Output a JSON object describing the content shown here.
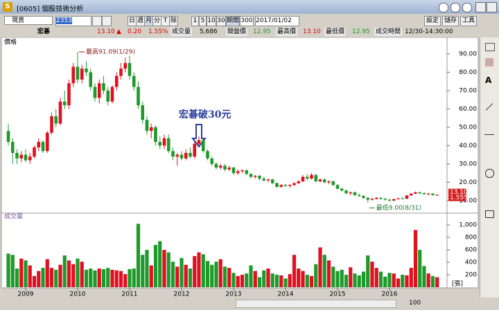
{
  "window": {
    "title": "[0605] 個股技術分析"
  },
  "toolbar": {
    "mode": "現貨",
    "symbol": "2353",
    "periods": [
      "日",
      "週",
      "月",
      "分",
      "T",
      "除"
    ],
    "minutes": [
      "1",
      "5",
      "10",
      "30"
    ],
    "range_label": "期間",
    "range": "300",
    "date": "2017/01/02",
    "buttons": [
      "設定",
      "儲存",
      "工具"
    ]
  },
  "quote": {
    "name": "宏碁",
    "price": "13.10",
    "arrow": "▲",
    "change": "0.20",
    "change_pct": "1.55%",
    "fields": [
      {
        "label": "成交量",
        "value": "5,686"
      },
      {
        "label": "開盤價",
        "value": "12.95"
      },
      {
        "label": "最高價",
        "value": "13.10"
      },
      {
        "label": "最低價",
        "value": "12.95"
      },
      {
        "label": "成交時間",
        "value": "12/30-14:30:00"
      }
    ]
  },
  "chart_data": [
    {
      "type": "candlestick",
      "title": "價格",
      "up_color": "#e01020",
      "down_color": "#1f9a2a",
      "ylim": [
        4.3,
        96
      ],
      "yticks": [
        {
          "value": 10,
          "label": "10.00"
        },
        {
          "value": 20,
          "label": "20.00"
        },
        {
          "value": 30,
          "label": "30.00"
        },
        {
          "value": 40,
          "label": "40.00"
        },
        {
          "value": 50,
          "label": "50.00"
        },
        {
          "value": 60,
          "label": "60.00"
        },
        {
          "value": 70,
          "label": "70.00"
        },
        {
          "value": 80,
          "label": "80.00"
        },
        {
          "value": 90,
          "label": "90.00"
        }
      ],
      "annotations": [
        "最高91.09(1/29)",
        "最低9.00(8/31)"
      ],
      "callout": "宏碁破30元",
      "candles": [
        [
          48,
          52,
          40,
          42
        ],
        [
          42,
          44,
          30,
          36
        ],
        [
          36,
          38,
          30,
          33
        ],
        [
          33,
          37,
          31,
          35
        ],
        [
          35,
          38,
          31,
          32
        ],
        [
          32,
          36,
          30,
          34
        ],
        [
          34,
          40,
          33,
          39
        ],
        [
          39,
          44,
          37,
          42
        ],
        [
          42,
          43,
          36,
          37
        ],
        [
          37,
          48,
          36,
          47
        ],
        [
          47,
          58,
          46,
          56
        ],
        [
          56,
          60,
          50,
          52
        ],
        [
          52,
          66,
          51,
          64
        ],
        [
          64,
          70,
          60,
          62
        ],
        [
          62,
          76,
          60,
          74
        ],
        [
          74,
          85,
          72,
          83
        ],
        [
          83,
          91.09,
          74,
          76
        ],
        [
          76,
          84,
          74,
          82
        ],
        [
          82,
          86,
          78,
          80
        ],
        [
          80,
          82,
          70,
          72
        ],
        [
          72,
          74,
          64,
          66
        ],
        [
          66,
          76,
          63,
          74
        ],
        [
          74,
          78,
          68,
          70
        ],
        [
          70,
          72,
          62,
          64
        ],
        [
          64,
          73,
          63,
          72
        ],
        [
          72,
          80,
          70,
          78
        ],
        [
          78,
          85,
          76,
          82
        ],
        [
          82,
          88,
          80,
          85
        ],
        [
          85,
          89,
          76,
          78
        ],
        [
          78,
          80,
          70,
          72
        ],
        [
          72,
          75,
          60,
          62
        ],
        [
          62,
          64,
          52,
          54
        ],
        [
          54,
          56,
          46,
          48
        ],
        [
          48,
          52,
          44,
          50
        ],
        [
          50,
          51,
          40,
          42
        ],
        [
          42,
          45,
          38,
          40
        ],
        [
          40,
          46,
          38,
          44
        ],
        [
          44,
          46,
          36,
          37
        ],
        [
          37,
          39,
          32,
          34
        ],
        [
          34,
          36,
          29,
          35
        ],
        [
          35,
          37,
          32,
          33
        ],
        [
          33,
          38,
          32,
          36
        ],
        [
          36,
          39,
          33,
          34
        ],
        [
          34,
          42,
          33,
          41
        ],
        [
          41,
          45,
          40,
          43
        ],
        [
          43,
          44,
          36,
          37
        ],
        [
          37,
          38,
          32,
          33
        ],
        [
          33,
          34,
          29,
          30
        ],
        [
          30,
          31,
          27,
          28
        ],
        [
          28,
          30,
          27,
          29
        ],
        [
          29,
          30,
          26,
          27
        ],
        [
          27,
          29,
          26,
          28
        ],
        [
          28,
          28.5,
          24,
          25
        ],
        [
          25,
          27,
          24,
          26
        ],
        [
          26,
          27,
          25,
          26.5
        ],
        [
          26.5,
          27,
          24,
          24.5
        ],
        [
          24.5,
          25,
          22,
          23
        ],
        [
          23,
          24,
          22,
          23.5
        ],
        [
          23.5,
          24,
          21,
          22
        ],
        [
          22,
          23,
          20.5,
          21
        ],
        [
          21,
          22,
          20,
          21.5
        ],
        [
          21.5,
          22,
          19,
          19.5
        ],
        [
          19.5,
          20,
          17,
          17.5
        ],
        [
          17.5,
          19,
          17,
          18.5
        ],
        [
          18.5,
          19,
          17.5,
          18
        ],
        [
          18,
          19,
          17,
          18.5
        ],
        [
          18.5,
          20,
          18,
          19.5
        ],
        [
          19.5,
          21,
          19,
          20.5
        ],
        [
          20.5,
          24,
          20,
          23
        ],
        [
          23,
          24.5,
          21,
          22
        ],
        [
          22,
          25,
          21.5,
          24
        ],
        [
          24,
          24.5,
          20,
          20.5
        ],
        [
          20.5,
          22,
          20,
          21.5
        ],
        [
          21.5,
          22,
          19.5,
          20
        ],
        [
          20,
          21,
          19,
          20.5
        ],
        [
          20.5,
          21,
          18,
          18.5
        ],
        [
          18.5,
          19,
          16,
          16.5
        ],
        [
          16.5,
          17,
          15,
          15.5
        ],
        [
          15.5,
          16,
          13.5,
          14
        ],
        [
          14,
          15,
          13,
          14.5
        ],
        [
          14.5,
          15,
          12.5,
          13
        ],
        [
          13,
          14,
          12,
          12.5
        ],
        [
          12.5,
          13,
          11,
          11.5
        ],
        [
          11.5,
          12,
          9,
          10.5
        ],
        [
          10.5,
          11.5,
          10,
          11
        ],
        [
          11,
          12,
          10.5,
          11.5
        ],
        [
          11.5,
          12,
          10.5,
          11
        ],
        [
          11,
          11.5,
          10,
          10.5
        ],
        [
          10.5,
          11,
          9.5,
          10
        ],
        [
          10,
          11,
          9.8,
          10.8
        ],
        [
          10.8,
          11.5,
          10.5,
          11.2
        ],
        [
          11.2,
          12,
          10.8,
          11
        ],
        [
          11,
          13,
          10.8,
          12.8
        ],
        [
          12.8,
          14,
          12.5,
          13.8
        ],
        [
          13.8,
          15,
          13.5,
          14.5
        ],
        [
          14.5,
          15,
          13.5,
          14
        ],
        [
          14,
          14.5,
          13.2,
          13.5
        ],
        [
          13.5,
          14.2,
          13,
          13.8
        ],
        [
          13.8,
          14,
          12.8,
          13
        ],
        [
          13,
          13.5,
          12.6,
          13.1
        ]
      ]
    },
    {
      "type": "bar",
      "title": "成交量",
      "unit": "[張]",
      "ylim": [
        0,
        1080
      ],
      "yticks": [
        200,
        400,
        600,
        800,
        {
          "value": 1000,
          "label": "1,000"
        }
      ],
      "categories": [
        null,
        null,
        null,
        null,
        "2009",
        null,
        null,
        null,
        null,
        null,
        null,
        null,
        null,
        null,
        null,
        null,
        "2010",
        null,
        null,
        null,
        null,
        null,
        null,
        null,
        null,
        null,
        null,
        null,
        "2011",
        null,
        null,
        null,
        null,
        null,
        null,
        null,
        null,
        null,
        null,
        null,
        "2012",
        null,
        null,
        null,
        null,
        null,
        null,
        null,
        null,
        null,
        null,
        null,
        "2013",
        null,
        null,
        null,
        null,
        null,
        null,
        null,
        null,
        null,
        null,
        null,
        "2014",
        null,
        null,
        null,
        null,
        null,
        null,
        null,
        null,
        null,
        null,
        null,
        "2015",
        null,
        null,
        null,
        null,
        null,
        null,
        null,
        null,
        null,
        null,
        null,
        "2016",
        null,
        null,
        null,
        null,
        null,
        null,
        null,
        null,
        null,
        null,
        null
      ],
      "values": [
        540,
        520,
        300,
        460,
        430,
        350,
        180,
        260,
        310,
        450,
        310,
        280,
        360,
        510,
        430,
        370,
        460,
        410,
        280,
        300,
        270,
        300,
        290,
        310,
        280,
        270,
        260,
        210,
        290,
        300,
        1020,
        520,
        600,
        350,
        680,
        740,
        600,
        560,
        410,
        330,
        470,
        360,
        300,
        500,
        560,
        530,
        420,
        360,
        410,
        450,
        330,
        310,
        230,
        180,
        200,
        220,
        350,
        260,
        160,
        270,
        300,
        220,
        200,
        190,
        140,
        210,
        520,
        300,
        260,
        200,
        180,
        370,
        640,
        520,
        430,
        330,
        260,
        280,
        200,
        320,
        220,
        190,
        250,
        510,
        410,
        310,
        250,
        170,
        230,
        220,
        140,
        200,
        190,
        310,
        920,
        600,
        340,
        220,
        180,
        160
      ]
    }
  ],
  "zoom": "100"
}
